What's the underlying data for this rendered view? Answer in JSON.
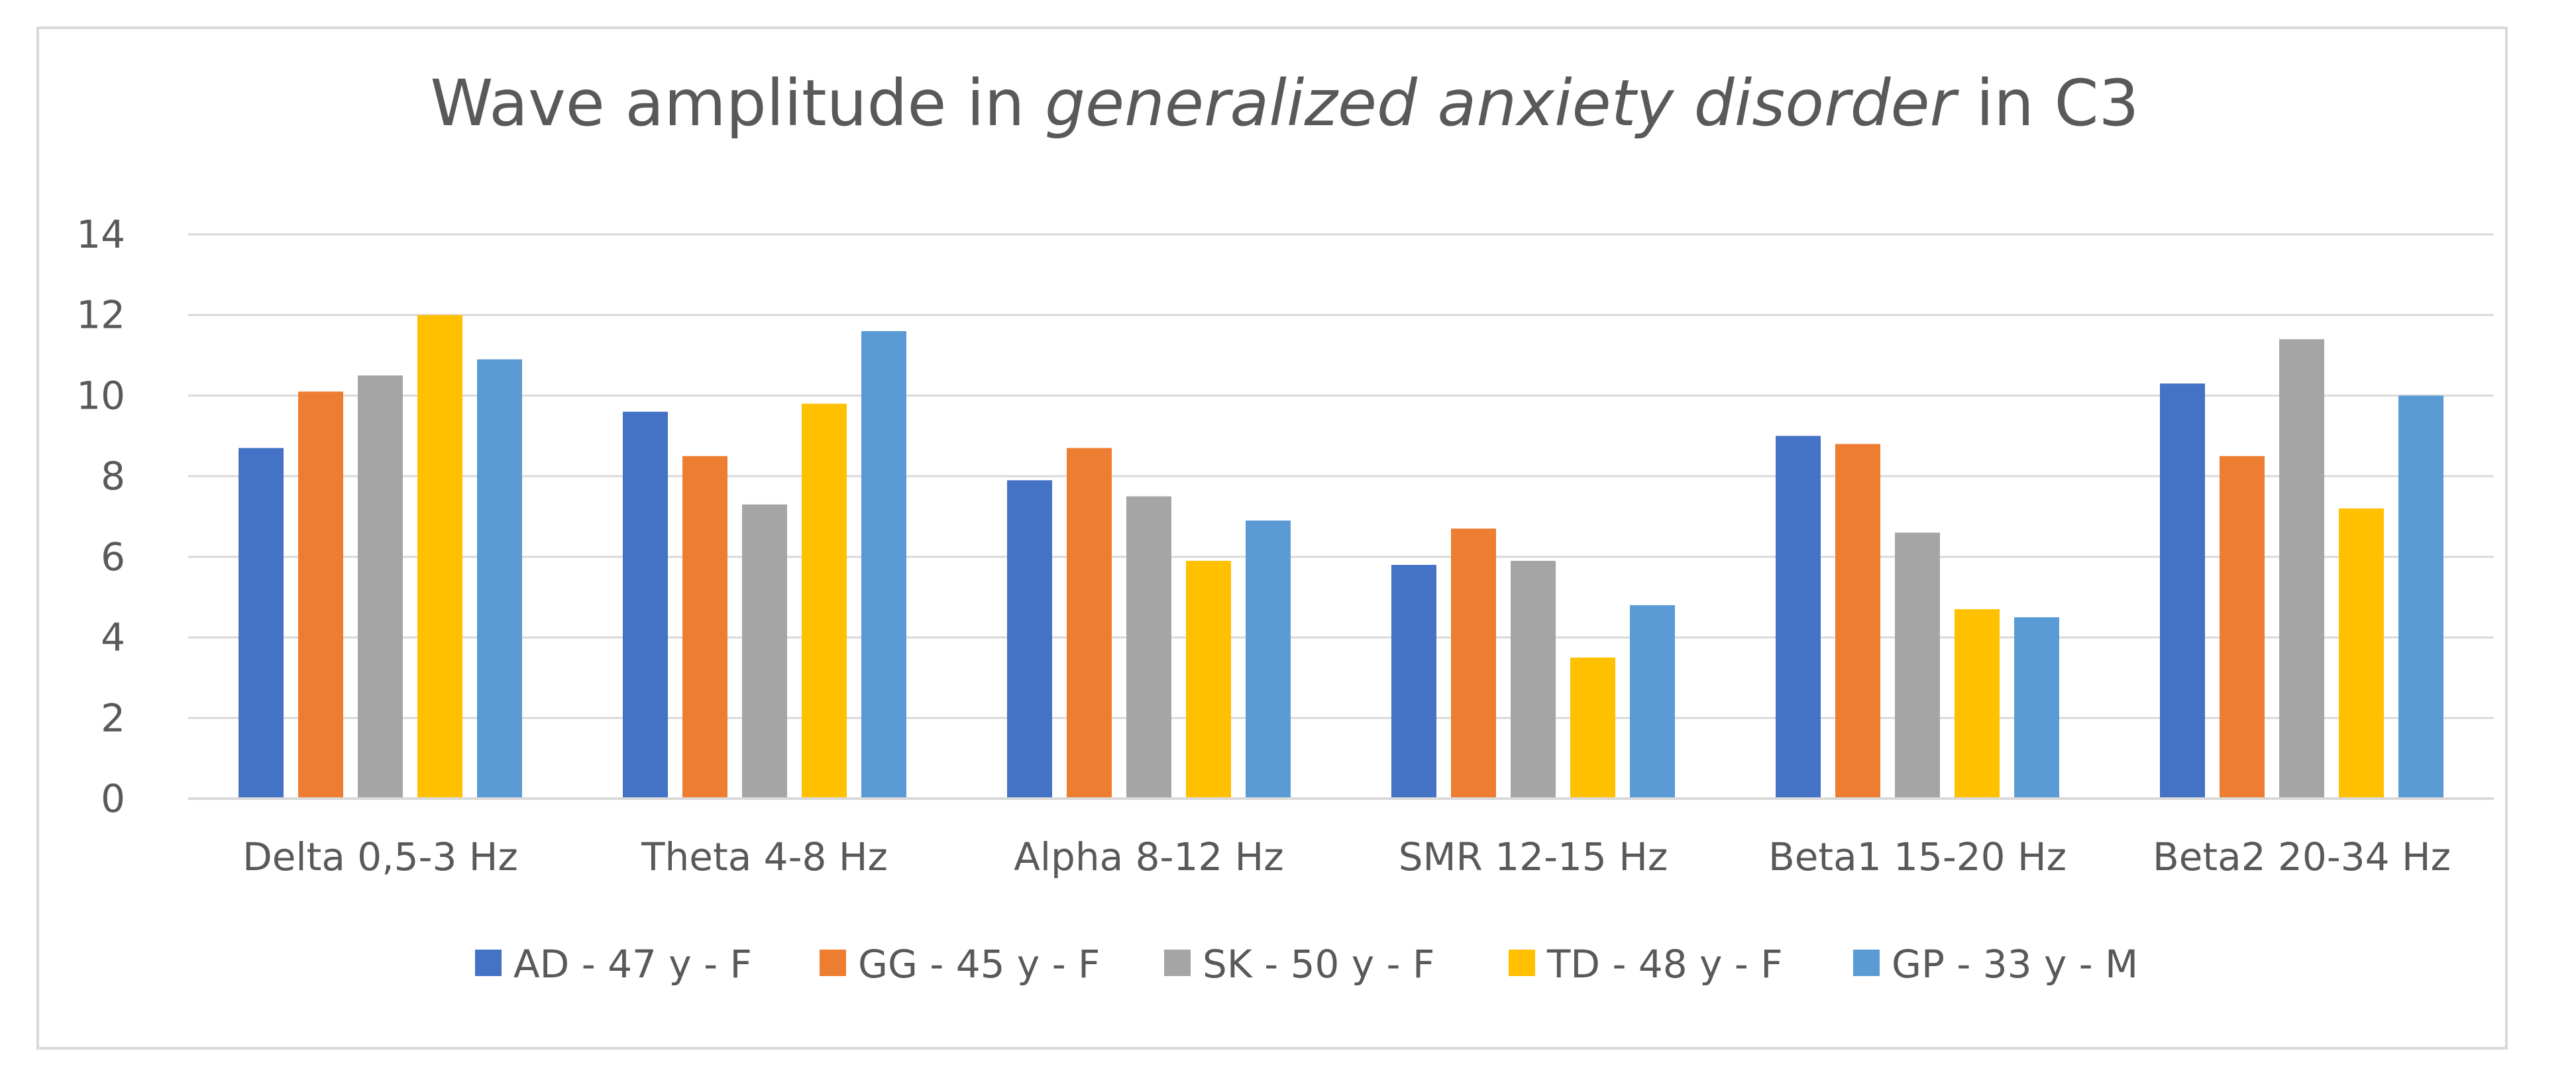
{
  "chart_data": {
    "type": "bar",
    "title": {
      "prefix": "Wave amplitude in ",
      "italic": "generalized anxiety disorder",
      "suffix": " in C3"
    },
    "xlabel": "",
    "ylabel": "",
    "ylim": [
      0,
      14
    ],
    "yticks": [
      0,
      2,
      4,
      6,
      8,
      10,
      12,
      14
    ],
    "grid": true,
    "legend_position": "bottom",
    "categories": [
      "Delta 0,5-3 Hz",
      "Theta 4-8 Hz",
      "Alpha 8-12 Hz",
      "SMR 12-15 Hz",
      "Beta1 15-20 Hz",
      "Beta2 20-34 Hz"
    ],
    "series": [
      {
        "name": "AD - 47 y - F",
        "color": "#4472C4",
        "values": [
          8.7,
          9.6,
          7.9,
          5.8,
          9.0,
          10.3
        ]
      },
      {
        "name": "GG - 45 y - F",
        "color": "#ED7D31",
        "values": [
          10.1,
          8.5,
          8.7,
          6.7,
          8.8,
          8.5
        ]
      },
      {
        "name": "SK - 50 y - F",
        "color": "#A5A5A5",
        "values": [
          10.5,
          7.3,
          7.5,
          5.9,
          6.6,
          11.4
        ]
      },
      {
        "name": "TD - 48 y - F",
        "color": "#FFC000",
        "values": [
          12.0,
          9.8,
          5.9,
          3.5,
          4.7,
          7.2
        ]
      },
      {
        "name": "GP - 33 y - M",
        "color": "#5B9BD5",
        "values": [
          10.9,
          11.6,
          6.9,
          4.8,
          4.5,
          10.0
        ]
      }
    ]
  }
}
